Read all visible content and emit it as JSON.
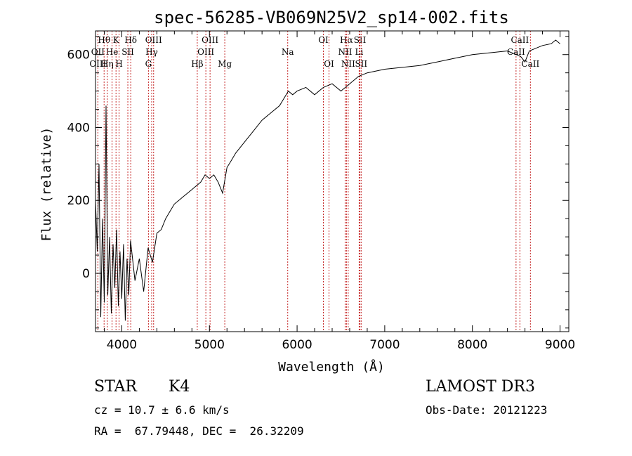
{
  "chart_data": {
    "type": "line",
    "title": "spec-56285-VB069N25V2_sp14-002.fits",
    "xlabel": "Wavelength (Å)",
    "ylabel": "Flux (relative)",
    "xlim": [
      3700,
      9100
    ],
    "ylim": [
      -160,
      665
    ],
    "x_ticks": [
      4000,
      5000,
      6000,
      7000,
      8000,
      9000
    ],
    "x_tick_labels": [
      "4000",
      "5000",
      "6000",
      "7000",
      "8000",
      "9000"
    ],
    "y_ticks": [
      0,
      200,
      400,
      600
    ],
    "y_tick_labels": [
      "0",
      "200",
      "400",
      "600"
    ],
    "series": [
      {
        "name": "flux",
        "x": [
          3700,
          3720,
          3740,
          3760,
          3780,
          3800,
          3820,
          3840,
          3860,
          3880,
          3900,
          3920,
          3940,
          3960,
          3980,
          4000,
          4020,
          4040,
          4060,
          4080,
          4100,
          4150,
          4200,
          4250,
          4300,
          4350,
          4400,
          4450,
          4500,
          4550,
          4600,
          4650,
          4700,
          4750,
          4800,
          4850,
          4900,
          4950,
          5000,
          5050,
          5100,
          5150,
          5200,
          5250,
          5300,
          5400,
          5500,
          5600,
          5700,
          5800,
          5850,
          5900,
          5950,
          6000,
          6100,
          6200,
          6300,
          6400,
          6500,
          6600,
          6700,
          6800,
          6900,
          7000,
          7200,
          7400,
          7600,
          7800,
          8000,
          8200,
          8400,
          8500,
          8550,
          8600,
          8650,
          8700,
          8800,
          8900,
          8950,
          9000
        ],
        "y": [
          200,
          60,
          300,
          -120,
          150,
          -80,
          460,
          -60,
          100,
          -110,
          80,
          -40,
          120,
          -90,
          60,
          -70,
          80,
          -130,
          40,
          -60,
          90,
          -20,
          40,
          -50,
          70,
          30,
          110,
          120,
          150,
          170,
          190,
          200,
          210,
          220,
          230,
          240,
          250,
          270,
          260,
          270,
          250,
          220,
          290,
          310,
          330,
          360,
          390,
          420,
          440,
          460,
          480,
          500,
          490,
          500,
          510,
          490,
          510,
          520,
          500,
          520,
          540,
          550,
          555,
          560,
          565,
          570,
          580,
          590,
          600,
          605,
          610,
          600,
          595,
          580,
          610,
          615,
          625,
          630,
          640,
          630
        ]
      }
    ],
    "spectral_lines": [
      {
        "label": "Hθ",
        "x": 3798,
        "row": 0
      },
      {
        "label": "K",
        "x": 3934,
        "row": 0
      },
      {
        "label": "Hδ",
        "x": 4102,
        "row": 0
      },
      {
        "label": "OIII",
        "x": 4363,
        "row": 0
      },
      {
        "label": "OIII",
        "x": 5007,
        "row": 0
      },
      {
        "label": "OI",
        "x": 6300,
        "row": 0
      },
      {
        "label": "Hα",
        "x": 6563,
        "row": 0
      },
      {
        "label": "SII",
        "x": 6717,
        "row": 0
      },
      {
        "label": "CaII",
        "x": 8542,
        "row": 0
      },
      {
        "label": "OII",
        "x": 3727,
        "row": 1
      },
      {
        "label": "He",
        "x": 3889,
        "row": 1
      },
      {
        "label": "SII",
        "x": 4069,
        "row": 1
      },
      {
        "label": "Hγ",
        "x": 4341,
        "row": 1
      },
      {
        "label": "OIII",
        "x": 4959,
        "row": 1
      },
      {
        "label": "Na",
        "x": 5893,
        "row": 1
      },
      {
        "label": "NII",
        "x": 6548,
        "row": 1
      },
      {
        "label": "Li",
        "x": 6708,
        "row": 1
      },
      {
        "label": "CaII",
        "x": 8498,
        "row": 1
      },
      {
        "label": "OIII",
        "x": 3727,
        "row": 2
      },
      {
        "label": "Hη",
        "x": 3835,
        "row": 2
      },
      {
        "label": "H",
        "x": 3969,
        "row": 2
      },
      {
        "label": "G",
        "x": 4304,
        "row": 2
      },
      {
        "label": "Hβ",
        "x": 4861,
        "row": 2
      },
      {
        "label": "Mg",
        "x": 5175,
        "row": 2
      },
      {
        "label": "OI",
        "x": 6364,
        "row": 2
      },
      {
        "label": "NII",
        "x": 6583,
        "row": 2
      },
      {
        "label": "SII",
        "x": 6731,
        "row": 2
      },
      {
        "label": "CaII",
        "x": 8662,
        "row": 2
      }
    ]
  },
  "info": {
    "object_class": "STAR",
    "subclass": "K4",
    "redshift": "cz = 10.7 ± 6.6 km/s",
    "coordinates": "RA =  67.79448, DEC =  26.32209",
    "survey": "LAMOST DR3",
    "obs_date": "Obs-Date: 20121223"
  }
}
